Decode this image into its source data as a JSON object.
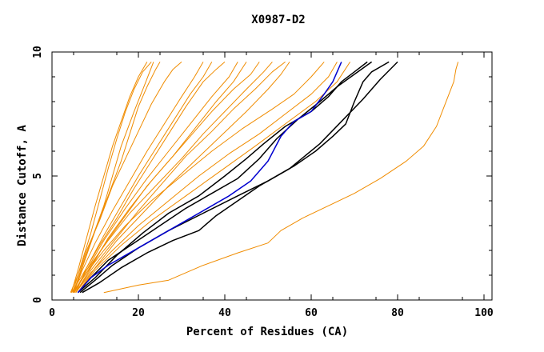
{
  "chart_data": {
    "type": "line",
    "title": "X0987-D2",
    "xlabel": "Percent of Residues (CA)",
    "ylabel": "Distance Cutoff, A",
    "xlim": [
      0,
      100
    ],
    "ylim": [
      0,
      10
    ],
    "x_ticks": [
      0,
      20,
      40,
      60,
      80,
      100
    ],
    "x_tick_labels": [
      "0",
      "20",
      "40",
      "60",
      "80",
      "100"
    ],
    "y_ticks": [
      0,
      5,
      10
    ],
    "y_tick_labels": [
      "0",
      "5",
      "10"
    ],
    "colors": {
      "orange": "#f08c00",
      "black": "#000000",
      "blue": "#0000d0"
    },
    "series": [
      {
        "name": "o1",
        "color": "orange",
        "points": [
          [
            4.5,
            0.3
          ],
          [
            6,
            1.2
          ],
          [
            8,
            2.5
          ],
          [
            10,
            3.8
          ],
          [
            12,
            5
          ],
          [
            14,
            6.2
          ],
          [
            16,
            7.2
          ],
          [
            18,
            8.2
          ],
          [
            20,
            9
          ],
          [
            22,
            9.6
          ]
        ]
      },
      {
        "name": "o2",
        "color": "orange",
        "points": [
          [
            4.8,
            0.3
          ],
          [
            6.5,
            1.3
          ],
          [
            9,
            2.7
          ],
          [
            11,
            4
          ],
          [
            13,
            5.3
          ],
          [
            15,
            6.5
          ],
          [
            17,
            7.6
          ],
          [
            19,
            8.5
          ],
          [
            21,
            9.2
          ],
          [
            23,
            9.6
          ]
        ]
      },
      {
        "name": "o3",
        "color": "orange",
        "points": [
          [
            5,
            0.3
          ],
          [
            7,
            1.4
          ],
          [
            9.5,
            2.6
          ],
          [
            12,
            3.8
          ],
          [
            14,
            5
          ],
          [
            16,
            6.2
          ],
          [
            19,
            7.6
          ],
          [
            21.5,
            8.7
          ],
          [
            23.5,
            9.6
          ]
        ]
      },
      {
        "name": "o4",
        "color": "orange",
        "points": [
          [
            5,
            0.3
          ],
          [
            7,
            1.3
          ],
          [
            10,
            2.8
          ],
          [
            13,
            4.2
          ],
          [
            16,
            5.6
          ],
          [
            18,
            6.7
          ],
          [
            20,
            7.8
          ],
          [
            22,
            8.6
          ],
          [
            24,
            9.3
          ],
          [
            25,
            9.6
          ]
        ]
      },
      {
        "name": "o5",
        "color": "orange",
        "points": [
          [
            4.3,
            0.3
          ],
          [
            6,
            1
          ],
          [
            8,
            2
          ],
          [
            11,
            3.2
          ],
          [
            14,
            4.6
          ],
          [
            17,
            5.7
          ],
          [
            20,
            6.8
          ],
          [
            23,
            7.9
          ],
          [
            26,
            8.8
          ],
          [
            28,
            9.3
          ],
          [
            30,
            9.6
          ]
        ]
      },
      {
        "name": "o6",
        "color": "orange",
        "points": [
          [
            5,
            0.3
          ],
          [
            7,
            1.2
          ],
          [
            10,
            2.3
          ],
          [
            14,
            3.6
          ],
          [
            18,
            4.8
          ],
          [
            22,
            6
          ],
          [
            26,
            7.1
          ],
          [
            30,
            8.2
          ],
          [
            33,
            9
          ],
          [
            35,
            9.6
          ]
        ]
      },
      {
        "name": "o7",
        "color": "orange",
        "points": [
          [
            5.5,
            0.3
          ],
          [
            8,
            1.3
          ],
          [
            12,
            2.6
          ],
          [
            16,
            3.8
          ],
          [
            20,
            5
          ],
          [
            24,
            6.1
          ],
          [
            28,
            7.2
          ],
          [
            32,
            8.3
          ],
          [
            35,
            9
          ],
          [
            37,
            9.6
          ]
        ]
      },
      {
        "name": "o8",
        "color": "orange",
        "points": [
          [
            4.5,
            0.3
          ],
          [
            7,
            1
          ],
          [
            11,
            2.2
          ],
          [
            15,
            3.3
          ],
          [
            19,
            4.5
          ],
          [
            23,
            5.6
          ],
          [
            27,
            6.7
          ],
          [
            31,
            7.8
          ],
          [
            35,
            8.8
          ],
          [
            38,
            9.3
          ],
          [
            40,
            9.6
          ]
        ]
      },
      {
        "name": "o9",
        "color": "orange",
        "points": [
          [
            5,
            0.3
          ],
          [
            8,
            1.2
          ],
          [
            12,
            2.4
          ],
          [
            17,
            3.7
          ],
          [
            22,
            4.9
          ],
          [
            27,
            6
          ],
          [
            32,
            7.1
          ],
          [
            37,
            8.2
          ],
          [
            41,
            9
          ],
          [
            43,
            9.6
          ]
        ]
      },
      {
        "name": "o10",
        "color": "orange",
        "points": [
          [
            5.5,
            0.3
          ],
          [
            9,
            1.3
          ],
          [
            13,
            2.5
          ],
          [
            18,
            3.7
          ],
          [
            23,
            4.8
          ],
          [
            28,
            5.8
          ],
          [
            33,
            6.9
          ],
          [
            38,
            8
          ],
          [
            42,
            8.8
          ],
          [
            45,
            9.6
          ]
        ]
      },
      {
        "name": "o11",
        "color": "orange",
        "points": [
          [
            4.8,
            0.3
          ],
          [
            8,
            1.1
          ],
          [
            12,
            2.2
          ],
          [
            17,
            3.4
          ],
          [
            22,
            4.6
          ],
          [
            27,
            5.6
          ],
          [
            32,
            6.6
          ],
          [
            37,
            7.6
          ],
          [
            42,
            8.5
          ],
          [
            46,
            9.1
          ],
          [
            48,
            9.6
          ]
        ]
      },
      {
        "name": "o12",
        "color": "orange",
        "points": [
          [
            5.2,
            0.3
          ],
          [
            8,
            1.2
          ],
          [
            13,
            2.4
          ],
          [
            18,
            3.5
          ],
          [
            24,
            4.6
          ],
          [
            30,
            5.7
          ],
          [
            35,
            6.7
          ],
          [
            40,
            7.6
          ],
          [
            45,
            8.5
          ],
          [
            49,
            9.2
          ],
          [
            51,
            9.6
          ]
        ]
      },
      {
        "name": "o13",
        "color": "orange",
        "points": [
          [
            5.5,
            0.3
          ],
          [
            9,
            1.2
          ],
          [
            14,
            2.3
          ],
          [
            20,
            3.6
          ],
          [
            26,
            4.8
          ],
          [
            31,
            5.8
          ],
          [
            37,
            6.8
          ],
          [
            42,
            7.7
          ],
          [
            47,
            8.5
          ],
          [
            51,
            9.2
          ],
          [
            54,
            9.6
          ]
        ]
      },
      {
        "name": "o14",
        "color": "orange",
        "points": [
          [
            6,
            0.3
          ],
          [
            10,
            1.3
          ],
          [
            15,
            2.4
          ],
          [
            21,
            3.5
          ],
          [
            27,
            4.6
          ],
          [
            33,
            5.6
          ],
          [
            39,
            6.6
          ],
          [
            45,
            7.6
          ],
          [
            50,
            8.5
          ],
          [
            53,
            9.1
          ],
          [
            55,
            9.6
          ]
        ]
      },
      {
        "name": "o15",
        "color": "orange",
        "points": [
          [
            5,
            0.3
          ],
          [
            8,
            1.1
          ],
          [
            12,
            2
          ],
          [
            17,
            3
          ],
          [
            23,
            4
          ],
          [
            30,
            5
          ],
          [
            37,
            6
          ],
          [
            44,
            6.9
          ],
          [
            51,
            7.7
          ],
          [
            56,
            8.3
          ],
          [
            60,
            9
          ],
          [
            63,
            9.6
          ]
        ]
      },
      {
        "name": "o16",
        "color": "orange",
        "points": [
          [
            5.5,
            0.3
          ],
          [
            9,
            1.1
          ],
          [
            14,
            2
          ],
          [
            20,
            3
          ],
          [
            27,
            4
          ],
          [
            34,
            5
          ],
          [
            41,
            5.9
          ],
          [
            48,
            6.7
          ],
          [
            54,
            7.5
          ],
          [
            60,
            8.3
          ],
          [
            64,
            9
          ],
          [
            66,
            9.6
          ]
        ]
      },
      {
        "name": "o17",
        "color": "orange",
        "points": [
          [
            6,
            0.3
          ],
          [
            10,
            1.2
          ],
          [
            16,
            2.2
          ],
          [
            23,
            3.2
          ],
          [
            31,
            4.2
          ],
          [
            39,
            5.2
          ],
          [
            47,
            6.2
          ],
          [
            54,
            7.1
          ],
          [
            61,
            8
          ],
          [
            66,
            8.8
          ],
          [
            69,
            9.6
          ]
        ]
      },
      {
        "name": "o18",
        "color": "orange",
        "points": [
          [
            12,
            0.3
          ],
          [
            20,
            0.6
          ],
          [
            27,
            0.8
          ],
          [
            35,
            1.4
          ],
          [
            43,
            1.9
          ],
          [
            50,
            2.3
          ],
          [
            53,
            2.8
          ],
          [
            58,
            3.3
          ],
          [
            64,
            3.8
          ],
          [
            70,
            4.3
          ],
          [
            76,
            4.9
          ],
          [
            82,
            5.6
          ],
          [
            86,
            6.2
          ],
          [
            89,
            7
          ],
          [
            91,
            7.9
          ],
          [
            93,
            8.8
          ],
          [
            93.5,
            9.3
          ],
          [
            94,
            9.6
          ]
        ]
      },
      {
        "name": "b1",
        "color": "black",
        "points": [
          [
            6,
            0.3
          ],
          [
            9,
            0.9
          ],
          [
            13,
            1.6
          ],
          [
            19,
            2.3
          ],
          [
            25,
            3
          ],
          [
            31,
            3.7
          ],
          [
            37,
            4.3
          ],
          [
            43,
            4.9
          ],
          [
            48,
            5.7
          ],
          [
            52,
            6.5
          ],
          [
            57,
            7.3
          ],
          [
            62,
            8
          ],
          [
            66,
            8.6
          ],
          [
            70,
            9.1
          ],
          [
            74,
            9.6
          ]
        ]
      },
      {
        "name": "b2",
        "color": "black",
        "points": [
          [
            6.5,
            0.3
          ],
          [
            10,
            0.8
          ],
          [
            14,
            1.4
          ],
          [
            20,
            2.1
          ],
          [
            27,
            2.8
          ],
          [
            35,
            3.5
          ],
          [
            43,
            4.2
          ],
          [
            50,
            4.8
          ],
          [
            56,
            5.4
          ],
          [
            61,
            6
          ],
          [
            65,
            6.6
          ],
          [
            68,
            7.1
          ],
          [
            70,
            8
          ],
          [
            72,
            8.8
          ],
          [
            74,
            9.2
          ],
          [
            78,
            9.6
          ]
        ]
      },
      {
        "name": "b3",
        "color": "black",
        "points": [
          [
            7,
            0.3
          ],
          [
            11,
            0.7
          ],
          [
            16,
            1.3
          ],
          [
            22,
            1.9
          ],
          [
            28,
            2.4
          ],
          [
            34,
            2.8
          ],
          [
            38,
            3.4
          ],
          [
            43,
            4
          ],
          [
            48,
            4.6
          ],
          [
            55,
            5.3
          ],
          [
            62,
            6.3
          ],
          [
            67,
            7.2
          ],
          [
            72,
            8.1
          ],
          [
            76,
            8.9
          ],
          [
            80,
            9.6
          ]
        ]
      },
      {
        "name": "b4",
        "color": "black",
        "points": [
          [
            6,
            0.3
          ],
          [
            10,
            0.9
          ],
          [
            15,
            1.8
          ],
          [
            21,
            2.7
          ],
          [
            27,
            3.5
          ],
          [
            34,
            4.2
          ],
          [
            40,
            5
          ],
          [
            45,
            5.7
          ],
          [
            49,
            6.3
          ],
          [
            54,
            7
          ],
          [
            60,
            7.6
          ],
          [
            64,
            8.2
          ],
          [
            67,
            8.8
          ],
          [
            70,
            9.2
          ],
          [
            73,
            9.6
          ]
        ]
      },
      {
        "name": "blue",
        "color": "blue",
        "points": [
          [
            6,
            0.3
          ],
          [
            9,
            0.9
          ],
          [
            13,
            1.4
          ],
          [
            17,
            1.8
          ],
          [
            21,
            2.2
          ],
          [
            26,
            2.7
          ],
          [
            31,
            3.2
          ],
          [
            36,
            3.7
          ],
          [
            41,
            4.2
          ],
          [
            46,
            4.8
          ],
          [
            50,
            5.6
          ],
          [
            53,
            6.6
          ],
          [
            56,
            7.2
          ],
          [
            60,
            7.6
          ],
          [
            63,
            8.3
          ],
          [
            65,
            8.8
          ],
          [
            67,
            9.6
          ]
        ]
      }
    ]
  }
}
